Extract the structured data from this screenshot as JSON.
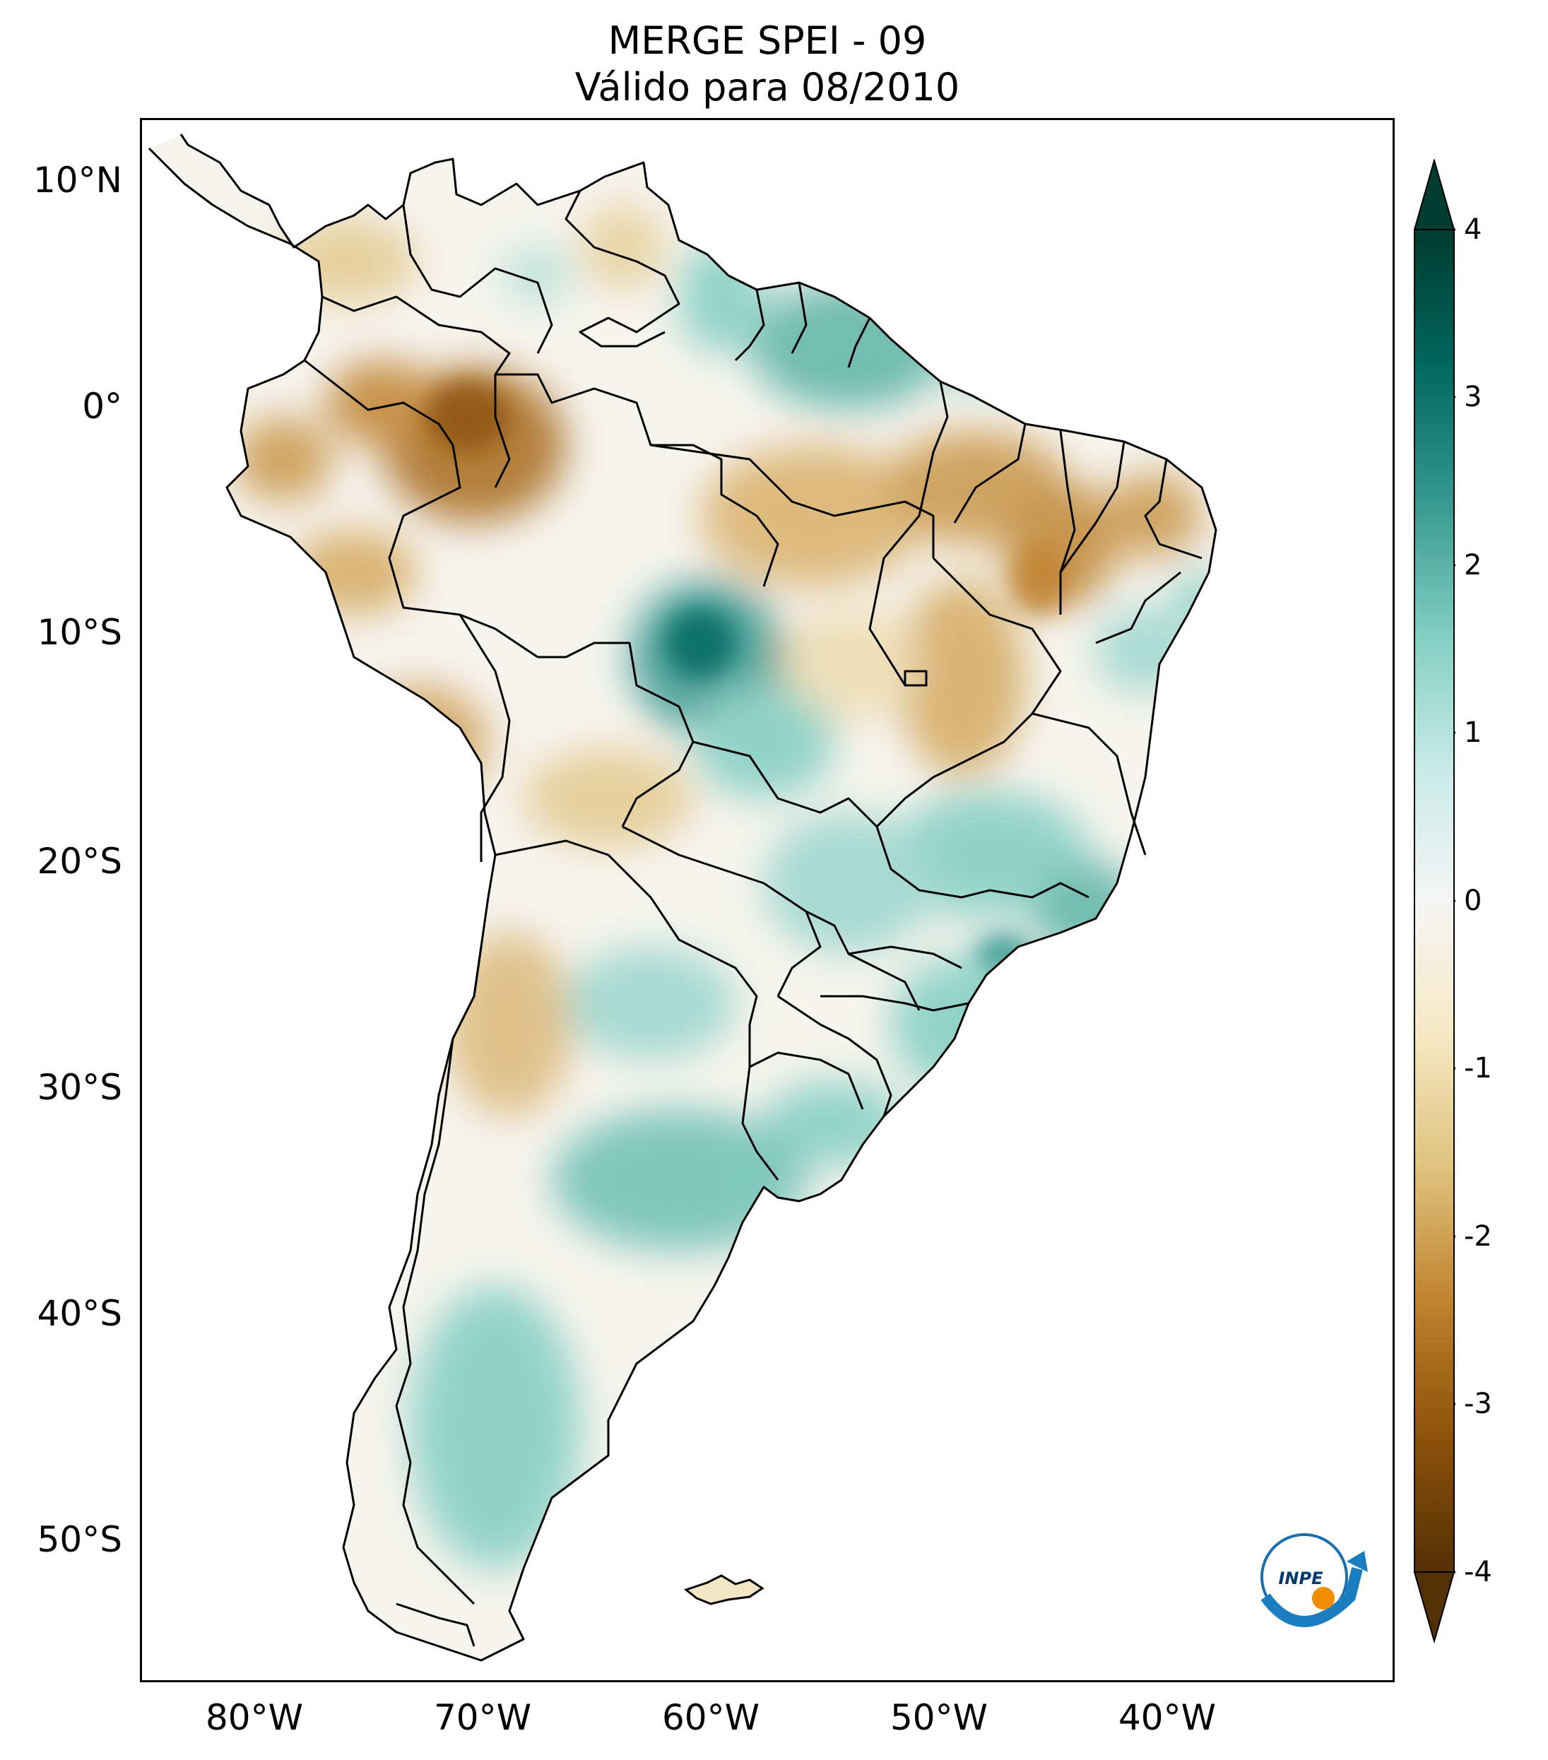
{
  "title_line1": "MERGE   SPEI - 09",
  "title_line2": "Válido para 08/2010",
  "map": {
    "region": "South America",
    "lon_range": [
      -85,
      -30
    ],
    "lat_range": [
      -56,
      13
    ],
    "lat_ticks": [
      {
        "label": "10°N"
      },
      {
        "label": "0°"
      },
      {
        "label": "10°S"
      },
      {
        "label": "20°S"
      },
      {
        "label": "30°S"
      },
      {
        "label": "40°S"
      },
      {
        "label": "50°S"
      }
    ],
    "lon_ticks": [
      {
        "label": "80°W"
      },
      {
        "label": "70°W"
      },
      {
        "label": "60°W"
      },
      {
        "label": "50°W"
      },
      {
        "label": "40°W"
      }
    ],
    "logo_text": "INPE"
  },
  "colorbar": {
    "cmap": "BrBG",
    "range": [
      -4,
      4
    ],
    "extend": "both",
    "ticks": [
      "4",
      "3",
      "2",
      "1",
      "0",
      "-1",
      "-2",
      "-3",
      "-4"
    ],
    "colors": {
      "dry_extreme": "#543005",
      "dry_strong": "#8c510a",
      "dry_moderate": "#bf812d",
      "dry_mild": "#dfc27d",
      "dry_slight": "#f6e8c3",
      "neutral": "#f5f5f5",
      "wet_slight": "#c7eae5",
      "wet_mild": "#80cdc1",
      "wet_moderate": "#35978f",
      "wet_strong": "#01665e",
      "wet_extreme": "#003c30"
    }
  }
}
